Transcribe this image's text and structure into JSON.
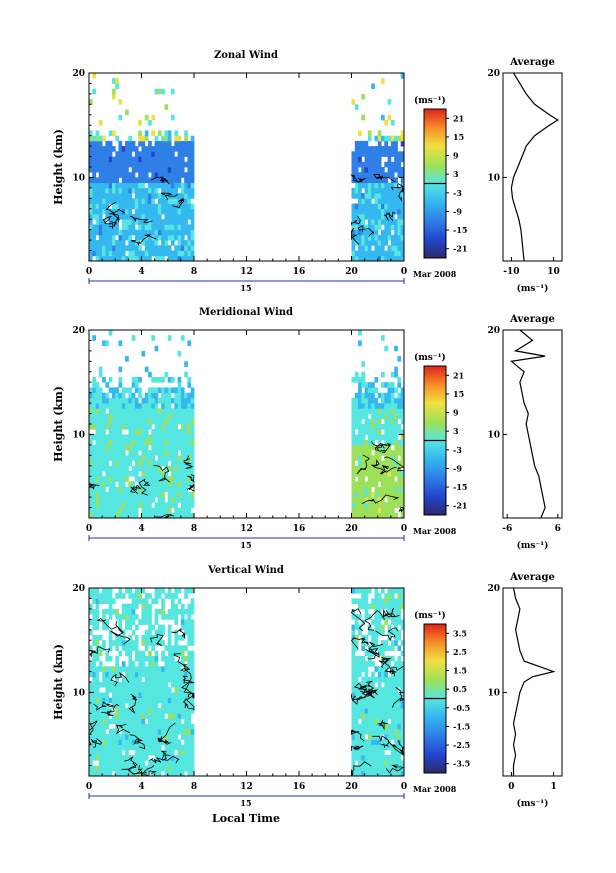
{
  "x_axis_label": "Local Time",
  "colorbar_unit": "(ms⁻¹)",
  "average_title": "Average",
  "chart_data": [
    {
      "type": "heatmap",
      "title": "Zonal Wind",
      "ylabel": "Height (km)",
      "xlim": [
        0,
        24
      ],
      "ylim": [
        2,
        20
      ],
      "x_ticks": [
        "0",
        "4",
        "8",
        "12",
        "16",
        "20",
        "0"
      ],
      "y_ticks": [
        "20",
        "10"
      ],
      "date_day": "15",
      "date_label": "Mar 2008",
      "data_coverage_hours": [
        [
          0,
          8
        ],
        [
          20,
          24
        ]
      ],
      "colorbar_ticks": [
        "21",
        "15",
        "9",
        "3",
        "-3",
        "-9",
        "-15",
        "-21"
      ],
      "colorbar_range": [
        -24,
        24
      ],
      "average": {
        "xlim": [
          -14,
          14
        ],
        "x_ticks": [
          "-10",
          "10"
        ],
        "unit": "(ms⁻¹)",
        "height_km": [
          2,
          3,
          4,
          5,
          6,
          7,
          8,
          9,
          10,
          11,
          12,
          13,
          14,
          15,
          15.5,
          16,
          17,
          18,
          19,
          20
        ],
        "value": [
          -4,
          -4.5,
          -5,
          -5.5,
          -6.5,
          -8,
          -9.5,
          -10,
          -9,
          -7,
          -5,
          -3,
          1,
          8,
          12,
          8,
          1,
          -3,
          -6,
          -9
        ]
      }
    },
    {
      "type": "heatmap",
      "title": "Meridional Wind",
      "ylabel": "Height (km)",
      "xlim": [
        0,
        24
      ],
      "ylim": [
        2,
        20
      ],
      "x_ticks": [
        "0",
        "4",
        "8",
        "12",
        "16",
        "20",
        "0"
      ],
      "y_ticks": [
        "20",
        "10"
      ],
      "date_day": "15",
      "date_label": "Mar 2008",
      "data_coverage_hours": [
        [
          0,
          8
        ],
        [
          20,
          24
        ]
      ],
      "colorbar_ticks": [
        "21",
        "15",
        "9",
        "3",
        "-3",
        "-9",
        "-15",
        "-21"
      ],
      "colorbar_range": [
        -24,
        24
      ],
      "average": {
        "xlim": [
          -7,
          7
        ],
        "x_ticks": [
          "-6",
          "6"
        ],
        "unit": "(ms⁻¹)",
        "height_km": [
          2,
          3,
          4,
          5,
          6,
          7,
          8,
          9,
          10,
          11,
          12,
          13,
          14,
          15,
          16,
          17,
          17.5,
          18,
          19,
          20
        ],
        "value": [
          2,
          3,
          2.5,
          2,
          1.5,
          0.5,
          0,
          -0.5,
          -1,
          -1.5,
          -1,
          -2,
          -2.5,
          -3,
          -2,
          -5,
          3,
          -4,
          0,
          -3
        ]
      }
    },
    {
      "type": "heatmap",
      "title": "Vertical Wind",
      "ylabel": "Height (km)",
      "xlabel": "Local Time",
      "xlim": [
        0,
        24
      ],
      "ylim": [
        2,
        20
      ],
      "x_ticks": [
        "0",
        "4",
        "8",
        "12",
        "16",
        "20",
        "0"
      ],
      "y_ticks": [
        "20",
        "10"
      ],
      "date_day": "15",
      "date_label": "Mar 2008",
      "data_coverage_hours": [
        [
          0,
          8
        ],
        [
          20,
          24
        ]
      ],
      "colorbar_ticks": [
        "3.5",
        "2.5",
        "1.5",
        "0.5",
        "-0.5",
        "-1.5",
        "-2.5",
        "-3.5"
      ],
      "colorbar_range": [
        -4,
        4
      ],
      "average": {
        "xlim": [
          -0.2,
          1.2
        ],
        "x_ticks": [
          "0",
          "1"
        ],
        "unit": "(ms⁻¹)",
        "height_km": [
          2,
          3,
          4,
          5,
          6,
          7,
          8,
          9,
          10,
          11,
          11.5,
          12,
          13,
          14,
          15,
          16,
          17,
          18,
          19,
          20
        ],
        "value": [
          0.05,
          0.05,
          0.1,
          0.05,
          0.1,
          0.05,
          0.1,
          0.15,
          0.2,
          0.3,
          0.5,
          1.0,
          0.3,
          0.2,
          0.15,
          0.1,
          0.15,
          0.2,
          0.1,
          0.05
        ]
      }
    }
  ]
}
